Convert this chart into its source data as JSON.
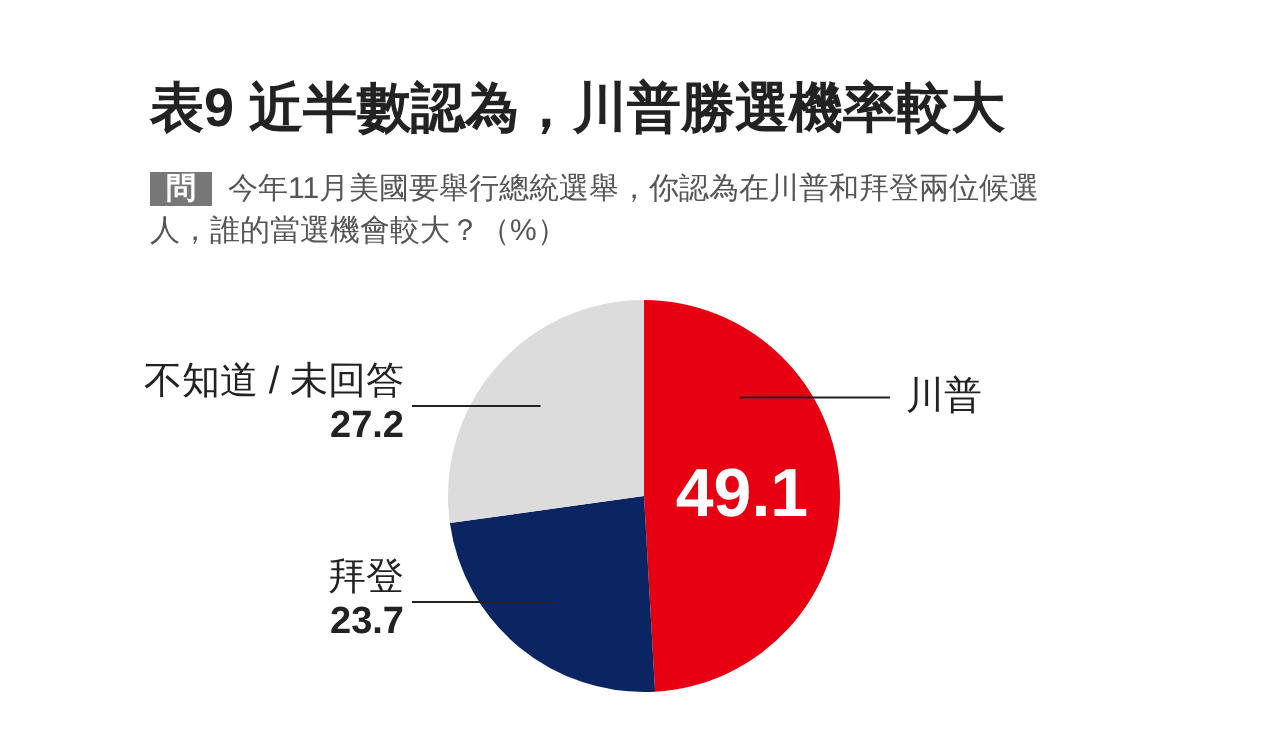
{
  "chart_data": {
    "type": "pie",
    "title": "表9 近半數認為，川普勝選機率較大",
    "subtitle": "今年11月美國要舉行總統選舉，你認為在川普和拜登兩位候選人，誰的當選機會較大？（%）",
    "annotations": [
      "問"
    ],
    "categories": [
      "川普",
      "拜登",
      "不知道 / 未回答"
    ],
    "values": [
      49.1,
      23.7,
      27.2
    ],
    "colors": [
      "#e60012",
      "#0b2462",
      "#dcdcdc"
    ],
    "data_labels": true,
    "legend": false
  }
}
